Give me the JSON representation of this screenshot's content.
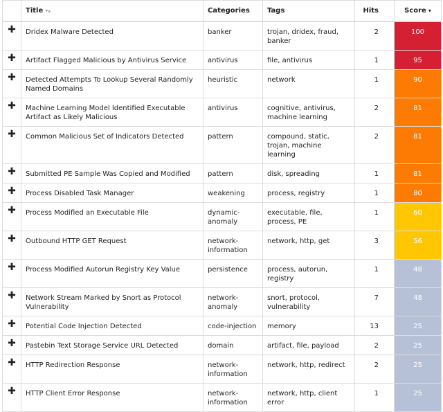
{
  "table": {
    "columns": {
      "title": "Title",
      "categories": "Categories",
      "tags": "Tags",
      "hits": "Hits",
      "score": "Score"
    },
    "expand_glyph": "✚",
    "sort_glyph_inactive": "▾▴",
    "sort_glyph_active": "▾",
    "score_colors": {
      "100": "#d42032",
      "95": "#d42032",
      "90": "#fd7b02",
      "81": "#fd7b02",
      "80": "#fd7b02",
      "60": "#ffc702",
      "56": "#ffc702",
      "48": "#b6c1d8",
      "25": "#b6c1d8"
    },
    "rows": [
      {
        "title": "Dridex Malware Detected",
        "categories": "banker",
        "tags": "trojan, dridex, fraud, banker",
        "hits": "2",
        "score": "100"
      },
      {
        "title": "Artifact Flagged Malicious by Antivirus Service",
        "categories": "antivirus",
        "tags": "file, antivirus",
        "hits": "1",
        "score": "95"
      },
      {
        "title": "Detected Attempts To Lookup Several Randomly Named Domains",
        "categories": "heuristic",
        "tags": "network",
        "hits": "1",
        "score": "90"
      },
      {
        "title": "Machine Learning Model Identified Executable Artifact as Likely Malicious",
        "categories": "antivirus",
        "tags": "cognitive, antivirus, machine learning",
        "hits": "2",
        "score": "81"
      },
      {
        "title": "Common Malicious Set of Indicators Detected",
        "categories": "pattern",
        "tags": "compound, static, trojan, machine learning",
        "hits": "2",
        "score": "81"
      },
      {
        "title": "Submitted PE Sample Was Copied and Modified",
        "categories": "pattern",
        "tags": "disk, spreading",
        "hits": "1",
        "score": "81"
      },
      {
        "title": "Process Disabled Task Manager",
        "categories": "weakening",
        "tags": "process, registry",
        "hits": "1",
        "score": "80"
      },
      {
        "title": "Process Modified an Executable File",
        "categories": "dynamic-anomaly",
        "tags": "executable, file, process, PE",
        "hits": "1",
        "score": "60"
      },
      {
        "title": "Outbound HTTP GET Request",
        "categories": "network-information",
        "tags": "network, http, get",
        "hits": "3",
        "score": "56"
      },
      {
        "title": "Process Modified Autorun Registry Key Value",
        "categories": "persistence",
        "tags": "process, autorun, registry",
        "hits": "1",
        "score": "48"
      },
      {
        "title": "Network Stream Marked by Snort as Protocol Vulnerability",
        "categories": "network-anomaly",
        "tags": "snort, protocol, vulnerability",
        "hits": "7",
        "score": "48"
      },
      {
        "title": "Potential Code Injection Detected",
        "categories": "code-injection",
        "tags": "memory",
        "hits": "13",
        "score": "25"
      },
      {
        "title": "Pastebin Text Storage Service URL Detected",
        "categories": "domain",
        "tags": "artifact, file, payload",
        "hits": "2",
        "score": "25"
      },
      {
        "title": "HTTP Redirection Response",
        "categories": "network-information",
        "tags": "network, http, redirect",
        "hits": "2",
        "score": "25"
      },
      {
        "title": "HTTP Client Error Response",
        "categories": "network-information",
        "tags": "network, http, client error",
        "hits": "1",
        "score": "25"
      }
    ]
  }
}
